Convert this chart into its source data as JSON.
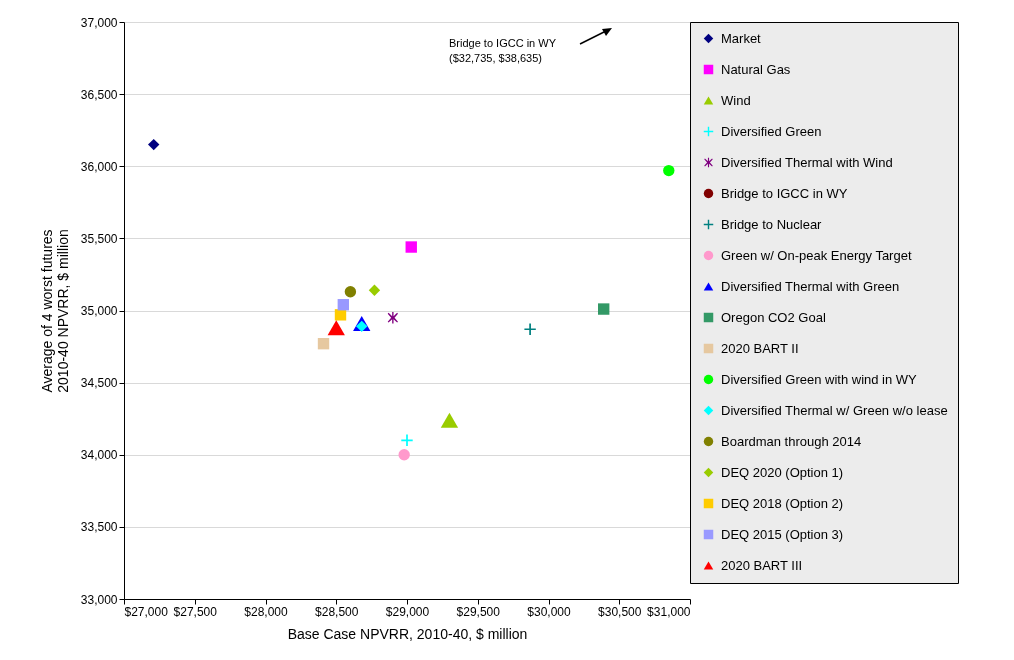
{
  "chart_data": {
    "type": "scatter",
    "xlabel": "Base Case NPVRR, 2010-40, $ million",
    "ylabel": "Average of 4 worst futures\n2010-40 NPVRR, $ million",
    "xlim": [
      27000,
      31000
    ],
    "xticks": [
      {
        "value": 27000,
        "label": "$27,000"
      },
      {
        "value": 27500,
        "label": "$27,500"
      },
      {
        "value": 28000,
        "label": "$28,000"
      },
      {
        "value": 28500,
        "label": "$28,500"
      },
      {
        "value": 29000,
        "label": "$29,000"
      },
      {
        "value": 29500,
        "label": "$29,500"
      },
      {
        "value": 30000,
        "label": "$30,000"
      },
      {
        "value": 30500,
        "label": "$30,500"
      },
      {
        "value": 31000,
        "label": "$31,000"
      }
    ],
    "ylim": [
      33000,
      37000
    ],
    "yticks": [
      {
        "value": 33000,
        "label": "33,000"
      },
      {
        "value": 33500,
        "label": "33,500"
      },
      {
        "value": 34000,
        "label": "34,000"
      },
      {
        "value": 34500,
        "label": "34,500"
      },
      {
        "value": 35000,
        "label": "35,000"
      },
      {
        "value": 35500,
        "label": "35,500"
      },
      {
        "value": 36000,
        "label": "36,000"
      },
      {
        "value": 36500,
        "label": "36,500"
      },
      {
        "value": 37000,
        "label": "37,000"
      }
    ],
    "grid": "y",
    "legend": "right",
    "annotations": [
      "Bridge to IGCC in WY\n($32,735, $38,635)"
    ],
    "series": [
      {
        "name": "Market",
        "color": "#000080",
        "marker": "diamond",
        "x": [
          27210
        ],
        "values": [
          36150
        ]
      },
      {
        "name": "Natural Gas",
        "color": "#ff00ff",
        "marker": "square",
        "x": [
          29030
        ],
        "values": [
          35440
        ]
      },
      {
        "name": "Wind",
        "color": "#99cc00",
        "marker": "triangle",
        "x": [
          29300
        ],
        "values": [
          34240
        ]
      },
      {
        "name": "Diversified Green",
        "color": "#00ffff",
        "marker": "cross",
        "x": [
          29000
        ],
        "values": [
          34100
        ]
      },
      {
        "name": "Diversified Thermal with Wind",
        "color": "#800080",
        "marker": "star",
        "x": [
          28900
        ],
        "values": [
          34950
        ]
      },
      {
        "name": "Bridge to IGCC in WY",
        "color": "#800000",
        "marker": "circle",
        "x": [
          null
        ],
        "values": [
          null
        ]
      },
      {
        "name": "Bridge to Nuclear",
        "color": "#008080",
        "marker": "cross",
        "x": [
          29870
        ],
        "values": [
          34870
        ]
      },
      {
        "name": "Green w/ On-peak Energy Target",
        "color": "#ff99cc",
        "marker": "circle",
        "x": [
          28980
        ],
        "values": [
          34000
        ]
      },
      {
        "name": "Diversified Thermal with Green",
        "color": "#0000ff",
        "marker": "triangle",
        "x": [
          28680
        ],
        "values": [
          34910
        ]
      },
      {
        "name": "Oregon CO2 Goal",
        "color": "#339966",
        "marker": "square",
        "x": [
          30390
        ],
        "values": [
          35010
        ]
      },
      {
        "name": "2020 BART II",
        "color": "#e6c8a0",
        "marker": "square",
        "x": [
          28410
        ],
        "values": [
          34770
        ]
      },
      {
        "name": "Diversified Green with wind in WY",
        "color": "#00ff00",
        "marker": "circle",
        "x": [
          30850
        ],
        "values": [
          35970
        ]
      },
      {
        "name": "Diversified Thermal w/ Green w/o lease",
        "color": "#00ffff",
        "marker": "diamond",
        "x": [
          28680
        ],
        "values": [
          34890
        ]
      },
      {
        "name": "Boardman through 2014",
        "color": "#808000",
        "marker": "circle",
        "x": [
          28600
        ],
        "values": [
          35130
        ]
      },
      {
        "name": "DEQ 2020 (Option 1)",
        "color": "#99cc00",
        "marker": "diamond",
        "x": [
          28770
        ],
        "values": [
          35140
        ]
      },
      {
        "name": "DEQ 2018 (Option 2)",
        "color": "#ffcc00",
        "marker": "square",
        "x": [
          28530
        ],
        "values": [
          34970
        ]
      },
      {
        "name": "DEQ 2015 (Option 3)",
        "color": "#9999ff",
        "marker": "square",
        "x": [
          28550
        ],
        "values": [
          35040
        ]
      },
      {
        "name": "2020 BART III",
        "color": "#ff0000",
        "marker": "triangle",
        "x": [
          28500
        ],
        "values": [
          34880
        ]
      }
    ]
  }
}
